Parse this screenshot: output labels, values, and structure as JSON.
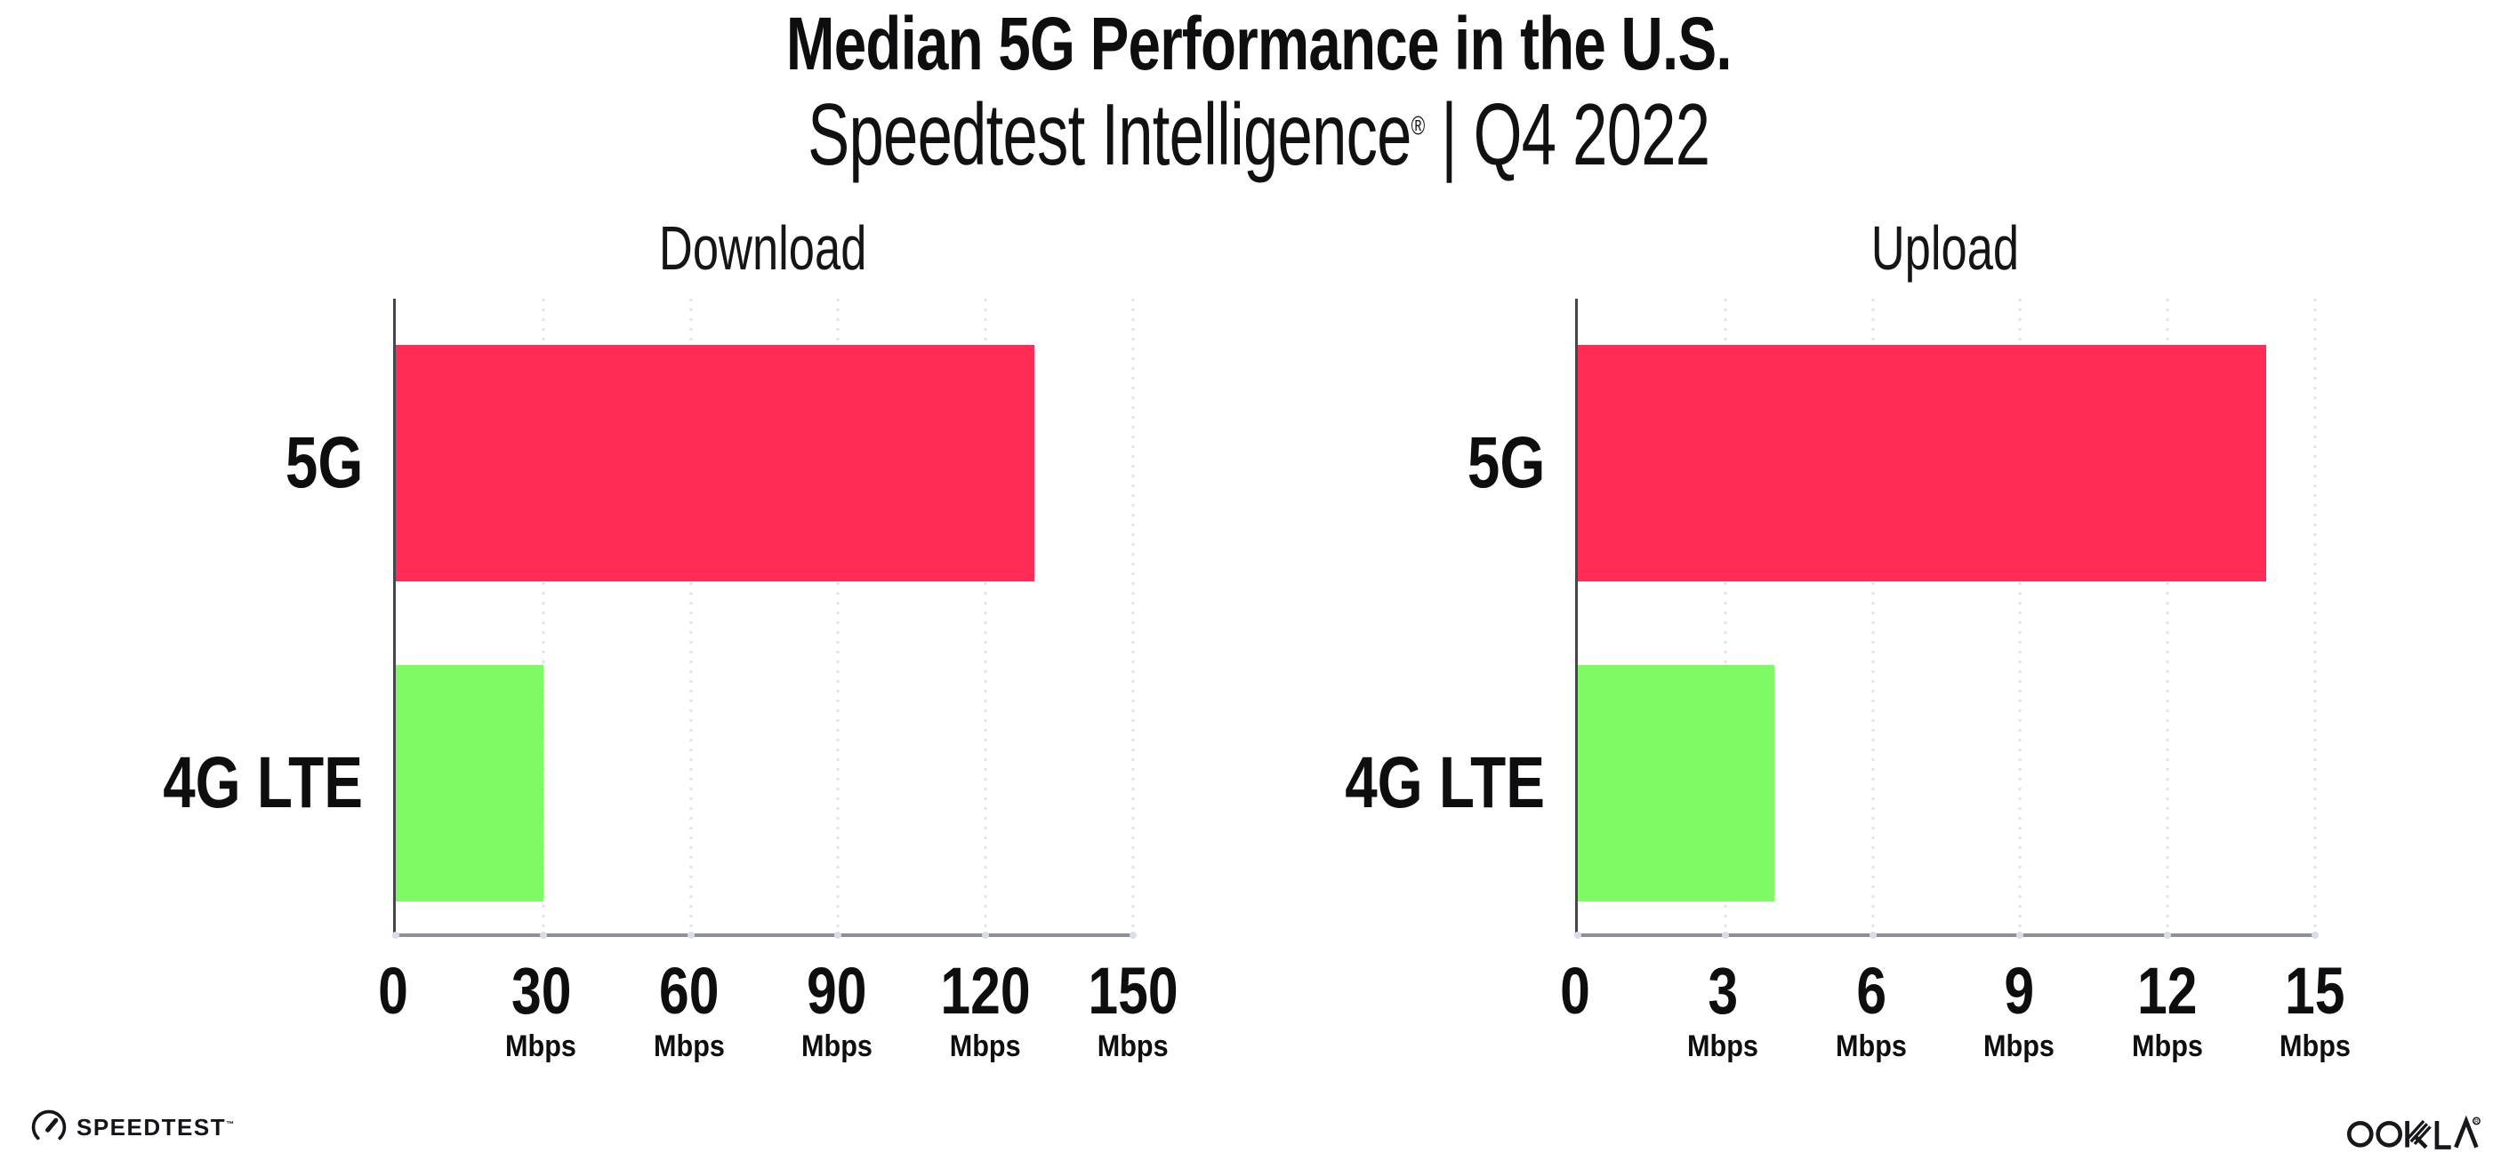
{
  "header": {
    "title": "Median 5G Performance in the U.S.",
    "subtitle_product": "Speedtest Intelligence",
    "subtitle_reg_mark": "®",
    "subtitle_separator": "|",
    "subtitle_period": "Q4 2022"
  },
  "chart_data": [
    {
      "type": "bar",
      "orientation": "horizontal",
      "title": "Download",
      "categories": [
        "5G",
        "4G LTE"
      ],
      "values": [
        130,
        30
      ],
      "unit": "Mbps",
      "xlabel": "",
      "ylabel": "",
      "xlim": [
        0,
        150
      ],
      "xticks": [
        0,
        30,
        60,
        90,
        120,
        150
      ],
      "bar_colors": [
        "#FF2D55",
        "#7EFA65"
      ],
      "grid": "vertical-dotted",
      "legend": "none"
    },
    {
      "type": "bar",
      "orientation": "horizontal",
      "title": "Upload",
      "categories": [
        "5G",
        "4G LTE"
      ],
      "values": [
        14,
        4
      ],
      "unit": "Mbps",
      "xlabel": "",
      "ylabel": "",
      "xlim": [
        0,
        15
      ],
      "xticks": [
        0,
        3,
        6,
        9,
        12,
        15
      ],
      "bar_colors": [
        "#FF2D55",
        "#7EFA65"
      ],
      "grid": "vertical-dotted",
      "legend": "none"
    }
  ],
  "footer": {
    "speedtest_logo_text": "SPEEDTEST",
    "speedtest_trademark": "™",
    "ookla_logo_text": "OOKLA",
    "ookla_reg_mark": "®"
  },
  "colors": {
    "bar_5g": "#FF2D55",
    "bar_4g_lte": "#7EFA65",
    "text": "#0E0E10",
    "axis_left": "#46464E",
    "axis_bottom": "#8F8F98",
    "grid_dot": "#E2E2EF"
  }
}
